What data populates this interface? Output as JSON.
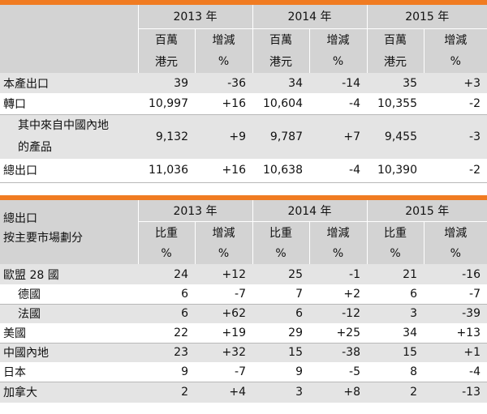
{
  "table1": {
    "years": [
      "2013 年",
      "2014 年",
      "2015 年"
    ],
    "sub_top": [
      {
        "unit": "百萬",
        "chg": "增減"
      },
      {
        "unit": "百萬",
        "chg": "增減"
      },
      {
        "unit": "百萬",
        "chg": "增減"
      }
    ],
    "sub_bottom": [
      {
        "unit": "港元",
        "chg": "%"
      },
      {
        "unit": "港元",
        "chg": "%"
      },
      {
        "unit": "港元",
        "chg": "%"
      }
    ],
    "rows": [
      {
        "label": "本產出口",
        "cells": [
          "39",
          "-36",
          "34",
          "-14",
          "35",
          "+3"
        ]
      },
      {
        "label": "轉口",
        "cells": [
          "10,997",
          "+16",
          "10,604",
          "-4",
          "10,355",
          "-2"
        ]
      },
      {
        "label_line1": "其中來自中國內地",
        "label_line2": "的產品",
        "cells": [
          "9,132",
          "+9",
          "9,787",
          "+7",
          "9,455",
          "-3"
        ]
      },
      {
        "label": "總出口",
        "cells": [
          "11,036",
          "+16",
          "10,638",
          "-4",
          "10,390",
          "-2"
        ]
      }
    ]
  },
  "table2": {
    "title_line1": "總出口",
    "title_line2": "按主要市場劃分",
    "years": [
      "2013 年",
      "2014 年",
      "2015 年"
    ],
    "sub_top": [
      {
        "unit": "比重",
        "chg": "增減"
      },
      {
        "unit": "比重",
        "chg": "增減"
      },
      {
        "unit": "比重",
        "chg": "增減"
      }
    ],
    "sub_bottom": [
      {
        "unit": "%",
        "chg": "%"
      },
      {
        "unit": "%",
        "chg": "%"
      },
      {
        "unit": "%",
        "chg": "%"
      }
    ],
    "rows": [
      {
        "label": "歐盟 28 國",
        "cells": [
          "24",
          "+12",
          "25",
          "-1",
          "21",
          "-16"
        ]
      },
      {
        "label": "德國",
        "cells": [
          "6",
          "-7",
          "7",
          "+2",
          "6",
          "-7"
        ]
      },
      {
        "label": "法國",
        "cells": [
          "6",
          "+62",
          "6",
          "-12",
          "3",
          "-39"
        ]
      },
      {
        "label": "美國",
        "cells": [
          "22",
          "+19",
          "29",
          "+25",
          "34",
          "+13"
        ]
      },
      {
        "label": "中國內地",
        "cells": [
          "23",
          "+32",
          "15",
          "-38",
          "15",
          "+1"
        ]
      },
      {
        "label": "日本",
        "cells": [
          "9",
          "-7",
          "9",
          "-5",
          "8",
          "-4"
        ]
      },
      {
        "label": "加拿大",
        "cells": [
          "2",
          "+4",
          "3",
          "+8",
          "2",
          "-13"
        ]
      }
    ]
  }
}
